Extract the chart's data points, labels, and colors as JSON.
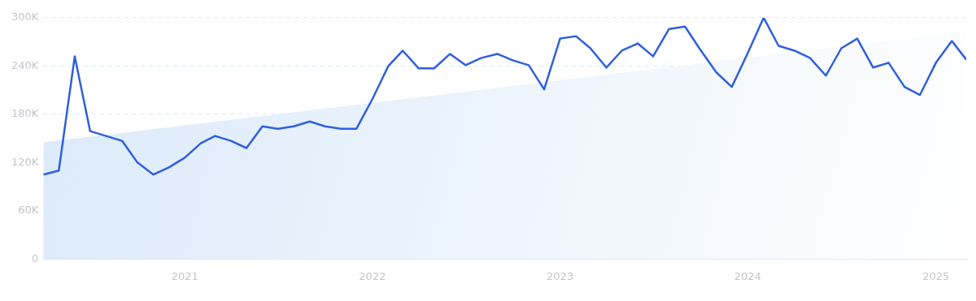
{
  "chart_data": {
    "type": "line",
    "x": [
      "2020-04",
      "2020-05",
      "2020-06",
      "2020-07",
      "2020-08",
      "2020-09",
      "2020-10",
      "2020-11",
      "2020-12",
      "2021-01",
      "2021-02",
      "2021-03",
      "2021-04",
      "2021-05",
      "2021-06",
      "2021-07",
      "2021-08",
      "2021-09",
      "2021-10",
      "2021-11",
      "2021-12",
      "2022-01",
      "2022-02",
      "2022-03",
      "2022-04",
      "2022-05",
      "2022-06",
      "2022-07",
      "2022-08",
      "2022-09",
      "2022-10",
      "2022-11",
      "2022-12",
      "2023-01",
      "2023-02",
      "2023-03",
      "2023-04",
      "2023-05",
      "2023-06",
      "2023-07",
      "2023-08",
      "2023-09",
      "2023-10",
      "2023-11",
      "2023-12",
      "2024-01",
      "2024-02",
      "2024-03",
      "2024-04",
      "2024-05",
      "2024-06",
      "2024-07",
      "2024-08",
      "2024-09",
      "2024-10",
      "2024-11",
      "2024-12",
      "2025-01",
      "2025-02",
      "2025-03"
    ],
    "series": [
      {
        "type": "area",
        "x": [
          "2020-04",
          "2025-03"
        ],
        "values": [
          145000,
          283000
        ],
        "color": "#dbeafa"
      },
      {
        "color": "#2f5ee0",
        "values": [
          105000,
          110000,
          252000,
          159000,
          153000,
          147000,
          120000,
          105000,
          114000,
          126000,
          144000,
          153000,
          147000,
          138000,
          165000,
          162000,
          165000,
          171000,
          165000,
          162000,
          162000,
          199000,
          240000,
          259000,
          237000,
          237000,
          255000,
          241000,
          250000,
          255000,
          247000,
          241000,
          211000,
          274000,
          277000,
          262000,
          238000,
          259000,
          268000,
          252000,
          286000,
          289000,
          260000,
          232000,
          214000,
          256000,
          300000,
          265000,
          259000,
          250000,
          228000,
          262000,
          274000,
          238000,
          244000,
          214000,
          204000,
          244000,
          271000,
          248000
        ]
      }
    ],
    "xlim": [
      "2020-04",
      "2025-03"
    ],
    "xticks": [
      "2021",
      "2022",
      "2023",
      "2024",
      "2025"
    ],
    "ylim": [
      0,
      300000
    ],
    "yticks": [
      0,
      {
        "value": 60000,
        "label": "60K"
      },
      {
        "value": 120000,
        "label": "120K"
      },
      {
        "value": 180000,
        "label": "180K"
      },
      {
        "value": 240000,
        "label": "240K"
      },
      {
        "value": 300000,
        "label": "300K"
      }
    ],
    "grid": "y",
    "legend": false,
    "marker": "none",
    "line_style": "solid"
  }
}
